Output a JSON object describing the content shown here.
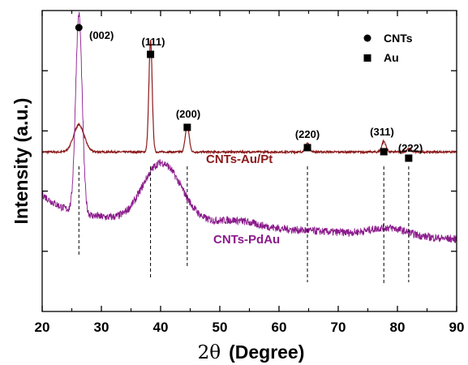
{
  "chart_data": {
    "type": "line",
    "title": "",
    "xlabel": "2θ (Degree)",
    "xlabel_symbol": "2θ",
    "xlabel_unit": "(Degree)",
    "ylabel": "Intensity (a.u.)",
    "xlim": [
      20,
      90
    ],
    "ylim": [
      0,
      100
    ],
    "x_ticks": [
      20,
      30,
      40,
      50,
      60,
      70,
      80,
      90
    ],
    "y_tick_labels": false,
    "grid": false,
    "legend_position": "top-right",
    "legend": [
      {
        "marker": "circle",
        "label": "CNTs"
      },
      {
        "marker": "square",
        "label": "Au"
      }
    ],
    "series": [
      {
        "name": "CNTs-Au/Pt",
        "color": "#8b1a1a",
        "baseline": 53,
        "peaks": [
          {
            "x": 26.2,
            "height": 9,
            "width": 0.9
          },
          {
            "x": 38.3,
            "height": 37,
            "width": 0.28
          },
          {
            "x": 44.5,
            "height": 9,
            "width": 0.32
          },
          {
            "x": 64.8,
            "height": 3,
            "width": 0.35
          },
          {
            "x": 77.7,
            "height": 3.5,
            "width": 0.35
          },
          {
            "x": 81.9,
            "height": 1,
            "width": 0.35
          }
        ]
      },
      {
        "name": "CNTs-PdAu",
        "color": "#8b1a8b",
        "peaks": [
          {
            "x": 26.2,
            "height": 66,
            "width": 0.55
          },
          {
            "x": 39.5,
            "height": 17,
            "width": 2.8
          },
          {
            "x": 43.0,
            "height": 6,
            "width": 2.5
          },
          {
            "x": 52.5,
            "height": 2,
            "width": 3.5
          },
          {
            "x": 78.5,
            "height": 2.5,
            "width": 3
          }
        ]
      }
    ],
    "reflections": [
      {
        "hkl": "(002)",
        "x": 26.2,
        "phase": "CNTs"
      },
      {
        "hkl": "(111)",
        "x": 38.3,
        "phase": "Au"
      },
      {
        "hkl": "(200)",
        "x": 44.5,
        "phase": "Au"
      },
      {
        "hkl": "(220)",
        "x": 64.8,
        "phase": "Au"
      },
      {
        "hkl": "(311)",
        "x": 77.7,
        "phase": "Au"
      },
      {
        "hkl": "(222)",
        "x": 81.9,
        "phase": "Au"
      }
    ]
  }
}
